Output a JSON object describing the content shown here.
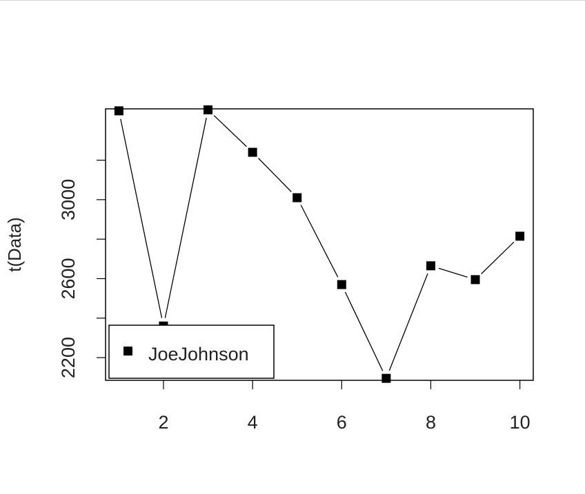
{
  "chart_data": {
    "type": "line",
    "ylabel": "t(Data)",
    "xlabel": "",
    "title": "",
    "x": [
      1,
      2,
      3,
      4,
      5,
      6,
      7,
      8,
      9,
      10
    ],
    "series": [
      {
        "name": "JoeJohnson",
        "values": [
          3450,
          2360,
          3455,
          3240,
          3010,
          2570,
          2095,
          2665,
          2595,
          2815
        ]
      }
    ],
    "xlim": [
      0.7,
      10.3
    ],
    "ylim": [
      2085,
      3460
    ],
    "xticks": [
      2,
      4,
      6,
      8,
      10
    ],
    "yticks": [
      2200,
      2400,
      2600,
      2800,
      3000,
      3200
    ],
    "ytick_labels": [
      "2200",
      "",
      "2600",
      "",
      "3000",
      ""
    ],
    "marker": "filled-square",
    "grid": false,
    "legend_position": "bottom-left"
  }
}
